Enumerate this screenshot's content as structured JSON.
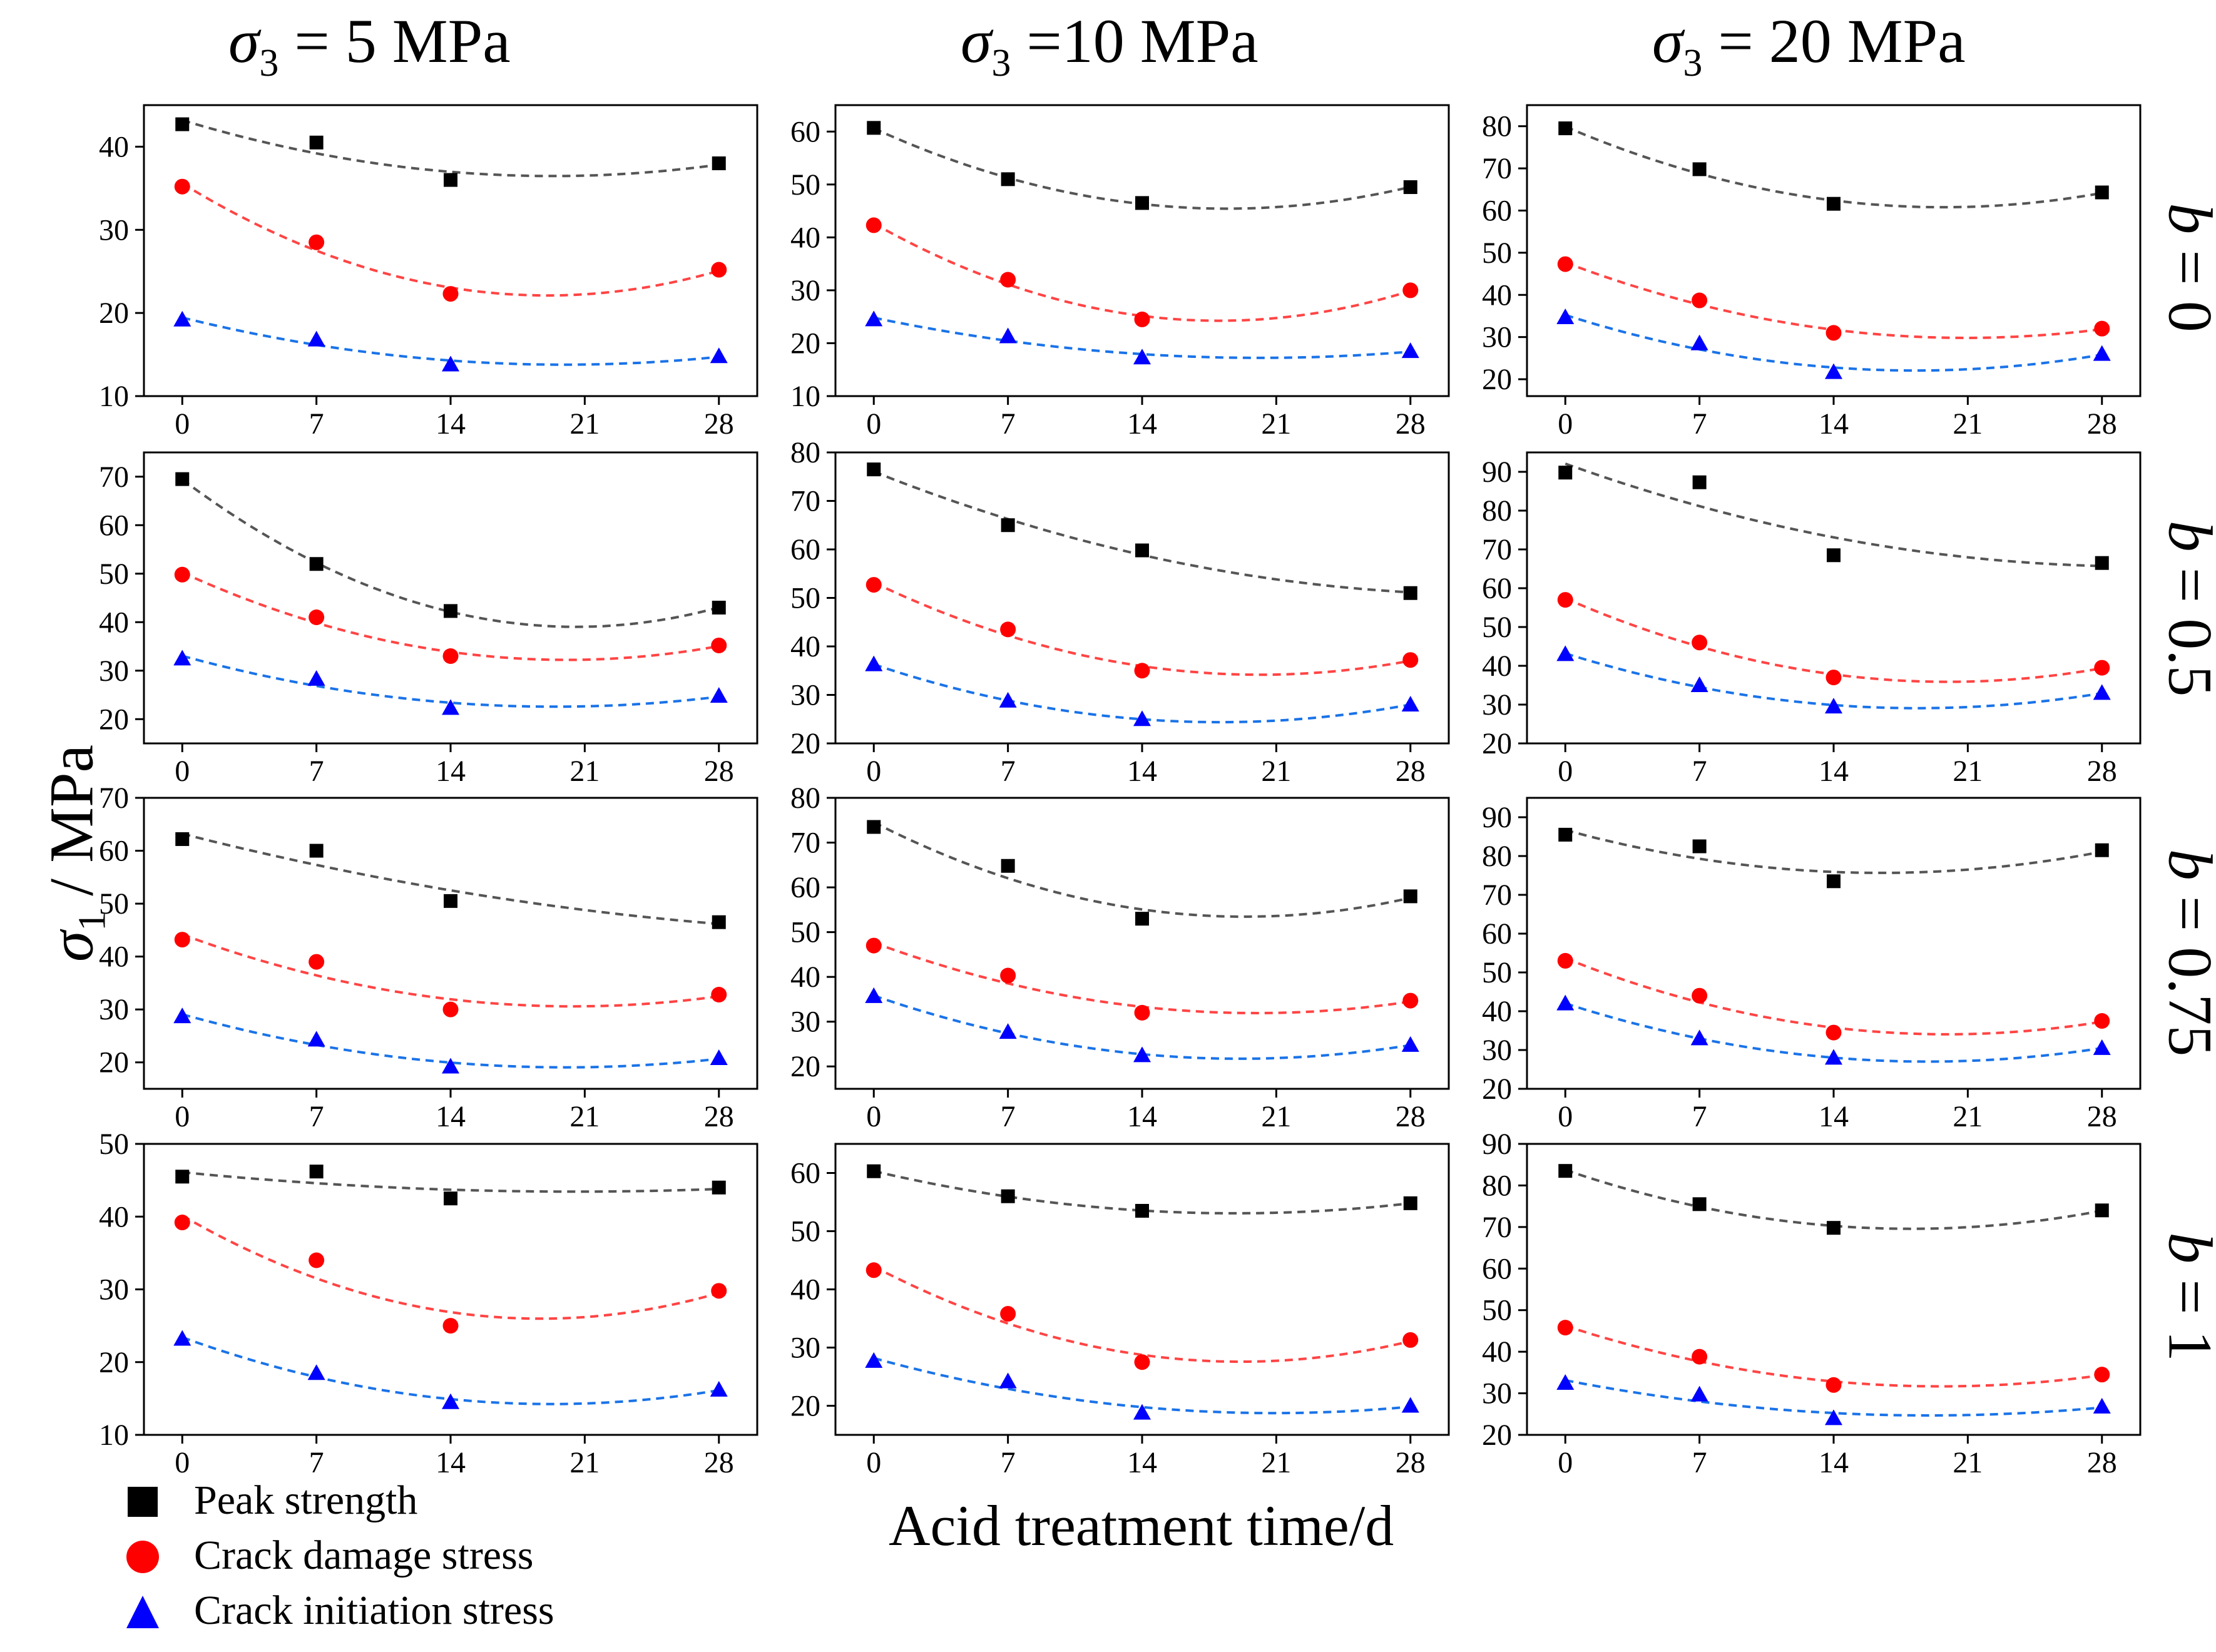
{
  "columns": [
    {
      "symbol": "σ",
      "sub": "3",
      "rest": " = 5 MPa"
    },
    {
      "symbol": "σ",
      "sub": "3",
      "rest": " =10 MPa"
    },
    {
      "symbol": "σ",
      "sub": "3",
      "rest": " = 20 MPa"
    }
  ],
  "rows": [
    {
      "symbol": "b",
      "rest": " = 0"
    },
    {
      "symbol": "b",
      "rest": " = 0.5"
    },
    {
      "symbol": "b",
      "rest": " = 0.75"
    },
    {
      "symbol": "b",
      "rest": " = 1"
    }
  ],
  "ylabel": {
    "symbol": "σ",
    "sub": "1",
    "rest": " / MPa"
  },
  "xlabel": "Acid treatment time/d",
  "legend": [
    {
      "label": "Peak strength",
      "marker": "square",
      "color": "#000000"
    },
    {
      "label": "Crack damage stress",
      "marker": "circle",
      "color": "#ff0000"
    },
    {
      "label": "Crack initiation stress",
      "marker": "triangle",
      "color": "#0000ff"
    }
  ],
  "colors": {
    "peak": "#000000",
    "peak_fit": "#555555",
    "cd": "#ff0000",
    "cd_fit": "#ff4444",
    "ci": "#0000ff",
    "ci_fit": "#1a73e8"
  },
  "chart_data": {
    "type": "scatter",
    "x": [
      0,
      7,
      14,
      28
    ],
    "xticks": [
      0,
      7,
      14,
      21,
      28
    ],
    "xlim": [
      -2,
      30
    ],
    "fit": "quadratic, dashed",
    "series_names": [
      "Peak strength",
      "Crack damage stress",
      "Crack initiation stress"
    ],
    "panels": [
      {
        "column": "σ3 = 5 MPa",
        "row": "b = 0",
        "ylim": [
          10,
          45
        ],
        "yticks": [
          10,
          20,
          30,
          40
        ],
        "peak": [
          42.7,
          40.5,
          36.0,
          38.0
        ],
        "cd": [
          35.2,
          28.5,
          22.3,
          25.2
        ],
        "ci": [
          19.2,
          16.8,
          13.8,
          14.8
        ]
      },
      {
        "column": "σ3 = 10 MPa",
        "row": "b = 0",
        "ylim": [
          10,
          65
        ],
        "yticks": [
          10,
          20,
          30,
          40,
          50,
          60
        ],
        "peak": [
          60.7,
          51.0,
          46.5,
          49.5
        ],
        "cd": [
          42.3,
          32.0,
          24.5,
          30.0
        ],
        "ci": [
          24.5,
          21.3,
          17.3,
          18.5
        ]
      },
      {
        "column": "σ3 = 20 MPa",
        "row": "b = 0",
        "ylim": [
          16,
          85
        ],
        "yticks": [
          20,
          30,
          40,
          50,
          60,
          70,
          80
        ],
        "peak": [
          79.5,
          69.8,
          61.6,
          64.3
        ],
        "cd": [
          47.3,
          38.7,
          31.0,
          32.0
        ],
        "ci": [
          34.7,
          28.5,
          21.7,
          26.0
        ]
      },
      {
        "column": "σ3 = 5 MPa",
        "row": "b = 0.5",
        "ylim": [
          15,
          75
        ],
        "yticks": [
          20,
          30,
          40,
          50,
          60,
          70
        ],
        "peak": [
          69.5,
          52.0,
          42.3,
          43.0
        ],
        "cd": [
          49.8,
          41.0,
          33.0,
          35.2
        ],
        "ci": [
          32.5,
          28.3,
          22.3,
          24.8
        ]
      },
      {
        "column": "σ3 = 10 MPa",
        "row": "b = 0.5",
        "ylim": [
          20,
          80
        ],
        "yticks": [
          20,
          30,
          40,
          50,
          60,
          70,
          80
        ],
        "peak": [
          76.5,
          65.0,
          59.8,
          51.0
        ],
        "cd": [
          52.7,
          43.5,
          35.0,
          37.2
        ],
        "ci": [
          36.3,
          28.8,
          25.0,
          28.0
        ]
      },
      {
        "column": "σ3 = 20 MPa",
        "row": "b = 0.5",
        "ylim": [
          20,
          95
        ],
        "yticks": [
          20,
          30,
          40,
          50,
          60,
          70,
          80,
          90
        ],
        "peak": [
          89.8,
          87.3,
          68.5,
          66.5
        ],
        "cd": [
          57.0,
          46.0,
          37.0,
          39.5
        ],
        "ci": [
          43.0,
          35.0,
          29.5,
          33.0
        ]
      },
      {
        "column": "σ3 = 5 MPa",
        "row": "b = 0.75",
        "ylim": [
          15,
          70
        ],
        "yticks": [
          20,
          30,
          40,
          50,
          60,
          70
        ],
        "peak": [
          62.2,
          60.0,
          50.5,
          46.5
        ],
        "cd": [
          43.2,
          39.0,
          30.0,
          32.8
        ],
        "ci": [
          28.7,
          24.3,
          19.2,
          20.8
        ]
      },
      {
        "column": "σ3 = 10 MPa",
        "row": "b = 0.75",
        "ylim": [
          15,
          80
        ],
        "yticks": [
          20,
          30,
          40,
          50,
          60,
          70,
          80
        ],
        "peak": [
          73.5,
          64.8,
          53.0,
          58.0
        ],
        "cd": [
          47.0,
          40.3,
          32.0,
          34.7
        ],
        "ci": [
          35.7,
          27.7,
          22.5,
          24.8
        ]
      },
      {
        "column": "σ3 = 20 MPa",
        "row": "b = 0.75",
        "ylim": [
          20,
          95
        ],
        "yticks": [
          20,
          30,
          40,
          50,
          60,
          70,
          80,
          90
        ],
        "peak": [
          85.5,
          82.5,
          73.5,
          81.5
        ],
        "cd": [
          53.0,
          44.0,
          34.5,
          37.5
        ],
        "ci": [
          42.0,
          33.0,
          28.0,
          30.5
        ]
      },
      {
        "column": "σ3 = 5 MPa",
        "row": "b = 1",
        "ylim": [
          10,
          50
        ],
        "yticks": [
          10,
          20,
          30,
          40,
          50
        ],
        "peak": [
          45.5,
          46.2,
          42.5,
          44.0
        ],
        "cd": [
          39.2,
          34.0,
          25.0,
          29.8
        ],
        "ci": [
          23.2,
          18.5,
          14.5,
          16.2
        ]
      },
      {
        "column": "σ3 = 10 MPa",
        "row": "b = 1",
        "ylim": [
          15,
          65
        ],
        "yticks": [
          20,
          30,
          40,
          50,
          60
        ],
        "peak": [
          60.3,
          56.0,
          53.5,
          54.8
        ],
        "cd": [
          43.3,
          35.8,
          27.5,
          31.3
        ],
        "ci": [
          27.7,
          24.2,
          18.8,
          20.0
        ]
      },
      {
        "column": "σ3 = 20 MPa",
        "row": "b = 1",
        "ylim": [
          20,
          90
        ],
        "yticks": [
          20,
          30,
          40,
          50,
          60,
          70,
          80,
          90
        ],
        "peak": [
          83.5,
          75.5,
          69.8,
          74.0
        ],
        "cd": [
          45.8,
          38.8,
          32.0,
          34.5
        ],
        "ci": [
          32.5,
          29.7,
          24.0,
          26.8
        ]
      }
    ]
  }
}
